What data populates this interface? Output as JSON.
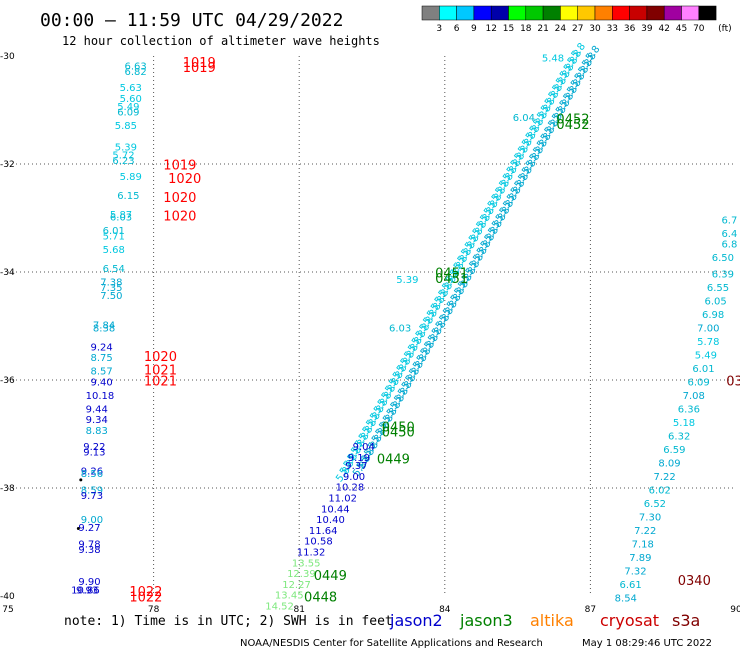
{
  "title": "00:00 – 11:59 UTC 04/29/2022",
  "subtitle": "12 hour collection of altimeter wave heights",
  "colorbar": {
    "ticks": [
      "3",
      "6",
      "9",
      "12",
      "15",
      "18",
      "21",
      "24",
      "27",
      "30",
      "33",
      "36",
      "39",
      "42",
      "45",
      "70"
    ],
    "unit": "(ft)",
    "colors": [
      "#808080",
      "#00ffff",
      "#00c8ff",
      "#0000ff",
      "#0000aa",
      "#00ff00",
      "#00c800",
      "#008000",
      "#ffff00",
      "#ffc800",
      "#ff8000",
      "#ff0000",
      "#c80000",
      "#800000",
      "#a000a0",
      "#ff80ff",
      "#000000"
    ]
  },
  "note": "note: 1) Time is in UTC; 2) SWH is in feet",
  "missions": [
    {
      "name": "jason2",
      "color": "#0000cc"
    },
    {
      "name": "jason3",
      "color": "#008000"
    },
    {
      "name": "altika",
      "color": "#ff8000"
    },
    {
      "name": "cryosat",
      "color": "#cc0000"
    },
    {
      "name": "s3a",
      "color": "#800000"
    }
  ],
  "footer_left": "NOAA/NESDIS Center for Satellite Applications and Research",
  "footer_right": "May  1 08:29:46 UTC 2022",
  "chart_data": {
    "type": "scatter",
    "xlim": [
      75,
      90
    ],
    "ylim": [
      -40,
      -30
    ],
    "x_ticks": [
      "75",
      "78",
      "81",
      "84",
      "87",
      "90"
    ],
    "y_ticks": [
      "-30",
      "-32",
      "-34",
      "-36",
      "-38",
      "-40"
    ],
    "grid": true,
    "swh_labels": [
      {
        "x": 77.4,
        "y": -30.25,
        "v": "6.63",
        "c": "#00b8d0"
      },
      {
        "x": 77.4,
        "y": -30.35,
        "v": "6.82",
        "c": "#00b8d0"
      },
      {
        "x": 77.3,
        "y": -30.65,
        "v": "5.63",
        "c": "#00c8e0"
      },
      {
        "x": 77.3,
        "y": -30.85,
        "v": "5.60",
        "c": "#00c8e0"
      },
      {
        "x": 77.25,
        "y": -31.0,
        "v": "5.49",
        "c": "#00c8e0"
      },
      {
        "x": 77.25,
        "y": -31.1,
        "v": "6.09",
        "c": "#00b8d0"
      },
      {
        "x": 77.2,
        "y": -31.35,
        "v": "5.85",
        "c": "#00c8e0"
      },
      {
        "x": 77.2,
        "y": -31.75,
        "v": "5.39",
        "c": "#00c8e0"
      },
      {
        "x": 77.15,
        "y": -31.9,
        "v": "5.72",
        "c": "#00c8e0"
      },
      {
        "x": 77.15,
        "y": -32.0,
        "v": "6.23",
        "c": "#00b8d0"
      },
      {
        "x": 77.3,
        "y": -32.3,
        "v": "5.89",
        "c": "#00c8e0"
      },
      {
        "x": 77.25,
        "y": -32.65,
        "v": "6.15",
        "c": "#00b8d0"
      },
      {
        "x": 77.1,
        "y": -33.0,
        "v": "5.87",
        "c": "#00c8e0"
      },
      {
        "x": 77.1,
        "y": -33.05,
        "v": "6.03",
        "c": "#00b8d0"
      },
      {
        "x": 76.95,
        "y": -33.3,
        "v": "6.01",
        "c": "#00b8d0"
      },
      {
        "x": 76.95,
        "y": -33.4,
        "v": "5.71",
        "c": "#00c8e0"
      },
      {
        "x": 76.95,
        "y": -33.65,
        "v": "5.68",
        "c": "#00c8e0"
      },
      {
        "x": 76.95,
        "y": -34.0,
        "v": "6.54",
        "c": "#00b8d0"
      },
      {
        "x": 76.9,
        "y": -34.25,
        "v": "7.38",
        "c": "#00a8d0"
      },
      {
        "x": 76.9,
        "y": -34.35,
        "v": "7.35",
        "c": "#00a8d0"
      },
      {
        "x": 76.9,
        "y": -34.5,
        "v": "7.50",
        "c": "#00a8d0"
      },
      {
        "x": 76.75,
        "y": -35.05,
        "v": "7.84",
        "c": "#00a8d0"
      },
      {
        "x": 76.75,
        "y": -35.1,
        "v": "8.38",
        "c": "#00a8d0"
      },
      {
        "x": 76.7,
        "y": -35.45,
        "v": "9.24",
        "c": "#0000cc"
      },
      {
        "x": 76.7,
        "y": -35.65,
        "v": "8.75",
        "c": "#00a8d0"
      },
      {
        "x": 76.7,
        "y": -35.9,
        "v": "8.57",
        "c": "#00a8d0"
      },
      {
        "x": 76.7,
        "y": -36.1,
        "v": "9.40",
        "c": "#0000cc"
      },
      {
        "x": 76.6,
        "y": -36.35,
        "v": "10.18",
        "c": "#0000cc"
      },
      {
        "x": 76.6,
        "y": -36.6,
        "v": "9.44",
        "c": "#0000cc"
      },
      {
        "x": 76.6,
        "y": -36.8,
        "v": "9.34",
        "c": "#0000cc"
      },
      {
        "x": 76.6,
        "y": -37.0,
        "v": "8.83",
        "c": "#00a8d0"
      },
      {
        "x": 76.55,
        "y": -37.3,
        "v": "9.22",
        "c": "#0000cc"
      },
      {
        "x": 76.55,
        "y": -37.4,
        "v": "9.13",
        "c": "#0000cc"
      },
      {
        "x": 76.5,
        "y": -37.75,
        "v": "9.26",
        "c": "#0000cc"
      },
      {
        "x": 76.5,
        "y": -37.8,
        "v": "8.56",
        "c": "#00a8d0"
      },
      {
        "x": 76.5,
        "y": -38.1,
        "v": "8.59",
        "c": "#00a8d0"
      },
      {
        "x": 76.5,
        "y": -38.2,
        "v": "9.73",
        "c": "#0000cc"
      },
      {
        "x": 76.5,
        "y": -38.65,
        "v": "9.00",
        "c": "#00a8d0"
      },
      {
        "x": 76.45,
        "y": -38.8,
        "v": "9.27",
        "c": "#0000cc"
      },
      {
        "x": 76.45,
        "y": -39.1,
        "v": "9.78",
        "c": "#0000cc"
      },
      {
        "x": 76.45,
        "y": -39.2,
        "v": "9.38",
        "c": "#0000cc"
      },
      {
        "x": 76.45,
        "y": -39.8,
        "v": "9.90",
        "c": "#0000cc"
      },
      {
        "x": 76.3,
        "y": -39.95,
        "v": "10.86",
        "c": "#0000cc"
      },
      {
        "x": 76.4,
        "y": -39.95,
        "v": "9.93",
        "c": "#0000cc"
      },
      {
        "x": 82.1,
        "y": -37.3,
        "v": "9.04",
        "c": "#0000cc"
      },
      {
        "x": 82.0,
        "y": -37.5,
        "v": "9.19",
        "c": "#0000cc"
      },
      {
        "x": 81.95,
        "y": -37.65,
        "v": "9.37",
        "c": "#0000cc"
      },
      {
        "x": 81.9,
        "y": -37.85,
        "v": "9.00",
        "c": "#0000cc"
      },
      {
        "x": 81.75,
        "y": -38.05,
        "v": "10.28",
        "c": "#0000cc"
      },
      {
        "x": 81.6,
        "y": -38.25,
        "v": "11.02",
        "c": "#0000cc"
      },
      {
        "x": 81.45,
        "y": -38.45,
        "v": "10.44",
        "c": "#0000cc"
      },
      {
        "x": 81.35,
        "y": -38.65,
        "v": "10.40",
        "c": "#0000cc"
      },
      {
        "x": 81.2,
        "y": -38.85,
        "v": "11.64",
        "c": "#0000cc"
      },
      {
        "x": 81.1,
        "y": -39.05,
        "v": "10.58",
        "c": "#0000cc"
      },
      {
        "x": 80.95,
        "y": -39.25,
        "v": "11.32",
        "c": "#0000cc"
      },
      {
        "x": 80.85,
        "y": -39.45,
        "v": "13.55",
        "c": "#7de87d"
      },
      {
        "x": 80.75,
        "y": -39.65,
        "v": "12.39",
        "c": "#7de87d"
      },
      {
        "x": 80.65,
        "y": -39.85,
        "v": "12.27",
        "c": "#7de87d"
      },
      {
        "x": 80.5,
        "y": -40.05,
        "v": "13.45",
        "c": "#7de87d"
      },
      {
        "x": 80.3,
        "y": -40.25,
        "v": "14.52",
        "c": "#7de87d"
      },
      {
        "x": 82.85,
        "y": -35.1,
        "v": "6.03",
        "c": "#00b8d0"
      },
      {
        "x": 83.0,
        "y": -34.2,
        "v": "5.39",
        "c": "#00c8e0"
      },
      {
        "x": 85.4,
        "y": -31.2,
        "v": "6.04",
        "c": "#00b8d0"
      },
      {
        "x": 86.0,
        "y": -30.1,
        "v": "5.48",
        "c": "#00c8e0"
      },
      {
        "x": 89.7,
        "y": -33.1,
        "v": "6.7",
        "c": "#00b8d0"
      },
      {
        "x": 89.7,
        "y": -33.35,
        "v": "6.4",
        "c": "#00b8d0"
      },
      {
        "x": 89.7,
        "y": -33.55,
        "v": "6.8",
        "c": "#00b8d0"
      },
      {
        "x": 89.5,
        "y": -33.8,
        "v": "6.50",
        "c": "#00b8d0"
      },
      {
        "x": 89.5,
        "y": -34.1,
        "v": "6.39",
        "c": "#00b8d0"
      },
      {
        "x": 89.4,
        "y": -34.35,
        "v": "6.55",
        "c": "#00b8d0"
      },
      {
        "x": 89.35,
        "y": -34.6,
        "v": "6.05",
        "c": "#00b8d0"
      },
      {
        "x": 89.3,
        "y": -34.85,
        "v": "6.98",
        "c": "#00b8d0"
      },
      {
        "x": 89.2,
        "y": -35.1,
        "v": "7.00",
        "c": "#00a8d0"
      },
      {
        "x": 89.2,
        "y": -35.35,
        "v": "5.78",
        "c": "#00c8e0"
      },
      {
        "x": 89.15,
        "y": -35.6,
        "v": "5.49",
        "c": "#00c8e0"
      },
      {
        "x": 89.1,
        "y": -35.85,
        "v": "6.01",
        "c": "#00b8d0"
      },
      {
        "x": 89.0,
        "y": -36.1,
        "v": "6.09",
        "c": "#00b8d0"
      },
      {
        "x": 88.9,
        "y": -36.35,
        "v": "7.08",
        "c": "#00a8d0"
      },
      {
        "x": 88.8,
        "y": -36.6,
        "v": "6.36",
        "c": "#00b8d0"
      },
      {
        "x": 88.7,
        "y": -36.85,
        "v": "5.18",
        "c": "#00c8e0"
      },
      {
        "x": 88.6,
        "y": -37.1,
        "v": "6.32",
        "c": "#00b8d0"
      },
      {
        "x": 88.5,
        "y": -37.35,
        "v": "6.59",
        "c": "#00b8d0"
      },
      {
        "x": 88.4,
        "y": -37.6,
        "v": "8.09",
        "c": "#00a8d0"
      },
      {
        "x": 88.3,
        "y": -37.85,
        "v": "7.22",
        "c": "#00a8d0"
      },
      {
        "x": 88.2,
        "y": -38.1,
        "v": "6.02",
        "c": "#00b8d0"
      },
      {
        "x": 88.1,
        "y": -38.35,
        "v": "6.52",
        "c": "#00b8d0"
      },
      {
        "x": 88.0,
        "y": -38.6,
        "v": "7.30",
        "c": "#00a8d0"
      },
      {
        "x": 87.9,
        "y": -38.85,
        "v": "7.22",
        "c": "#00a8d0"
      },
      {
        "x": 87.85,
        "y": -39.1,
        "v": "7.18",
        "c": "#00a8d0"
      },
      {
        "x": 87.8,
        "y": -39.35,
        "v": "7.89",
        "c": "#00a8d0"
      },
      {
        "x": 87.7,
        "y": -39.6,
        "v": "7.32",
        "c": "#00a8d0"
      },
      {
        "x": 87.6,
        "y": -39.85,
        "v": "6.61",
        "c": "#00b8d0"
      },
      {
        "x": 87.5,
        "y": -40.1,
        "v": "8.54",
        "c": "#00a8d0"
      }
    ],
    "time_labels": [
      {
        "x": 78.6,
        "y": -30.2,
        "v": "1019",
        "c": "#ff0000"
      },
      {
        "x": 78.6,
        "y": -30.3,
        "v": "1019",
        "c": "#ff0000"
      },
      {
        "x": 78.2,
        "y": -32.1,
        "v": "1019",
        "c": "#ff0000"
      },
      {
        "x": 78.3,
        "y": -32.35,
        "v": "1020",
        "c": "#ff0000"
      },
      {
        "x": 78.2,
        "y": -32.7,
        "v": "1020",
        "c": "#ff0000"
      },
      {
        "x": 78.2,
        "y": -33.05,
        "v": "1020",
        "c": "#ff0000"
      },
      {
        "x": 77.8,
        "y": -35.65,
        "v": "1020",
        "c": "#ff0000"
      },
      {
        "x": 77.8,
        "y": -35.9,
        "v": "1021",
        "c": "#ff0000"
      },
      {
        "x": 77.8,
        "y": -36.1,
        "v": "1021",
        "c": "#ff0000"
      },
      {
        "x": 77.5,
        "y": -40.0,
        "v": "1022",
        "c": "#ff0000"
      },
      {
        "x": 77.5,
        "y": -40.1,
        "v": "1022",
        "c": "#ff0000"
      },
      {
        "x": 86.3,
        "y": -31.25,
        "v": "0452",
        "c": "#008000"
      },
      {
        "x": 86.3,
        "y": -31.35,
        "v": "0452",
        "c": "#008000"
      },
      {
        "x": 83.8,
        "y": -34.1,
        "v": "0451",
        "c": "#008000"
      },
      {
        "x": 83.8,
        "y": -34.2,
        "v": "0451",
        "c": "#008000"
      },
      {
        "x": 82.7,
        "y": -36.95,
        "v": "0450",
        "c": "#008000"
      },
      {
        "x": 82.7,
        "y": -37.05,
        "v": "0450",
        "c": "#008000"
      },
      {
        "x": 82.6,
        "y": -37.55,
        "v": "0449",
        "c": "#008000"
      },
      {
        "x": 81.3,
        "y": -39.7,
        "v": "0449",
        "c": "#008000"
      },
      {
        "x": 81.1,
        "y": -40.1,
        "v": "0448",
        "c": "#008000"
      },
      {
        "x": 89.8,
        "y": -36.1,
        "v": "03",
        "c": "#800000"
      },
      {
        "x": 88.8,
        "y": -39.8,
        "v": "0340",
        "c": "#800000"
      }
    ],
    "tracks": [
      {
        "name": "jason3-track",
        "points": [
          [
            81.85,
            -37.9
          ],
          [
            86.7,
            -30.05
          ]
        ],
        "count": 62,
        "c": "#00c8e0"
      },
      {
        "name": "jason3-track-b",
        "points": [
          [
            82.2,
            -37.8
          ],
          [
            87.0,
            -30.1
          ]
        ],
        "count": 62,
        "c": "#00a8d0"
      }
    ],
    "dots": [
      {
        "x": 76.5,
        "y": -37.85
      },
      {
        "x": 76.45,
        "y": -38.75
      }
    ]
  }
}
